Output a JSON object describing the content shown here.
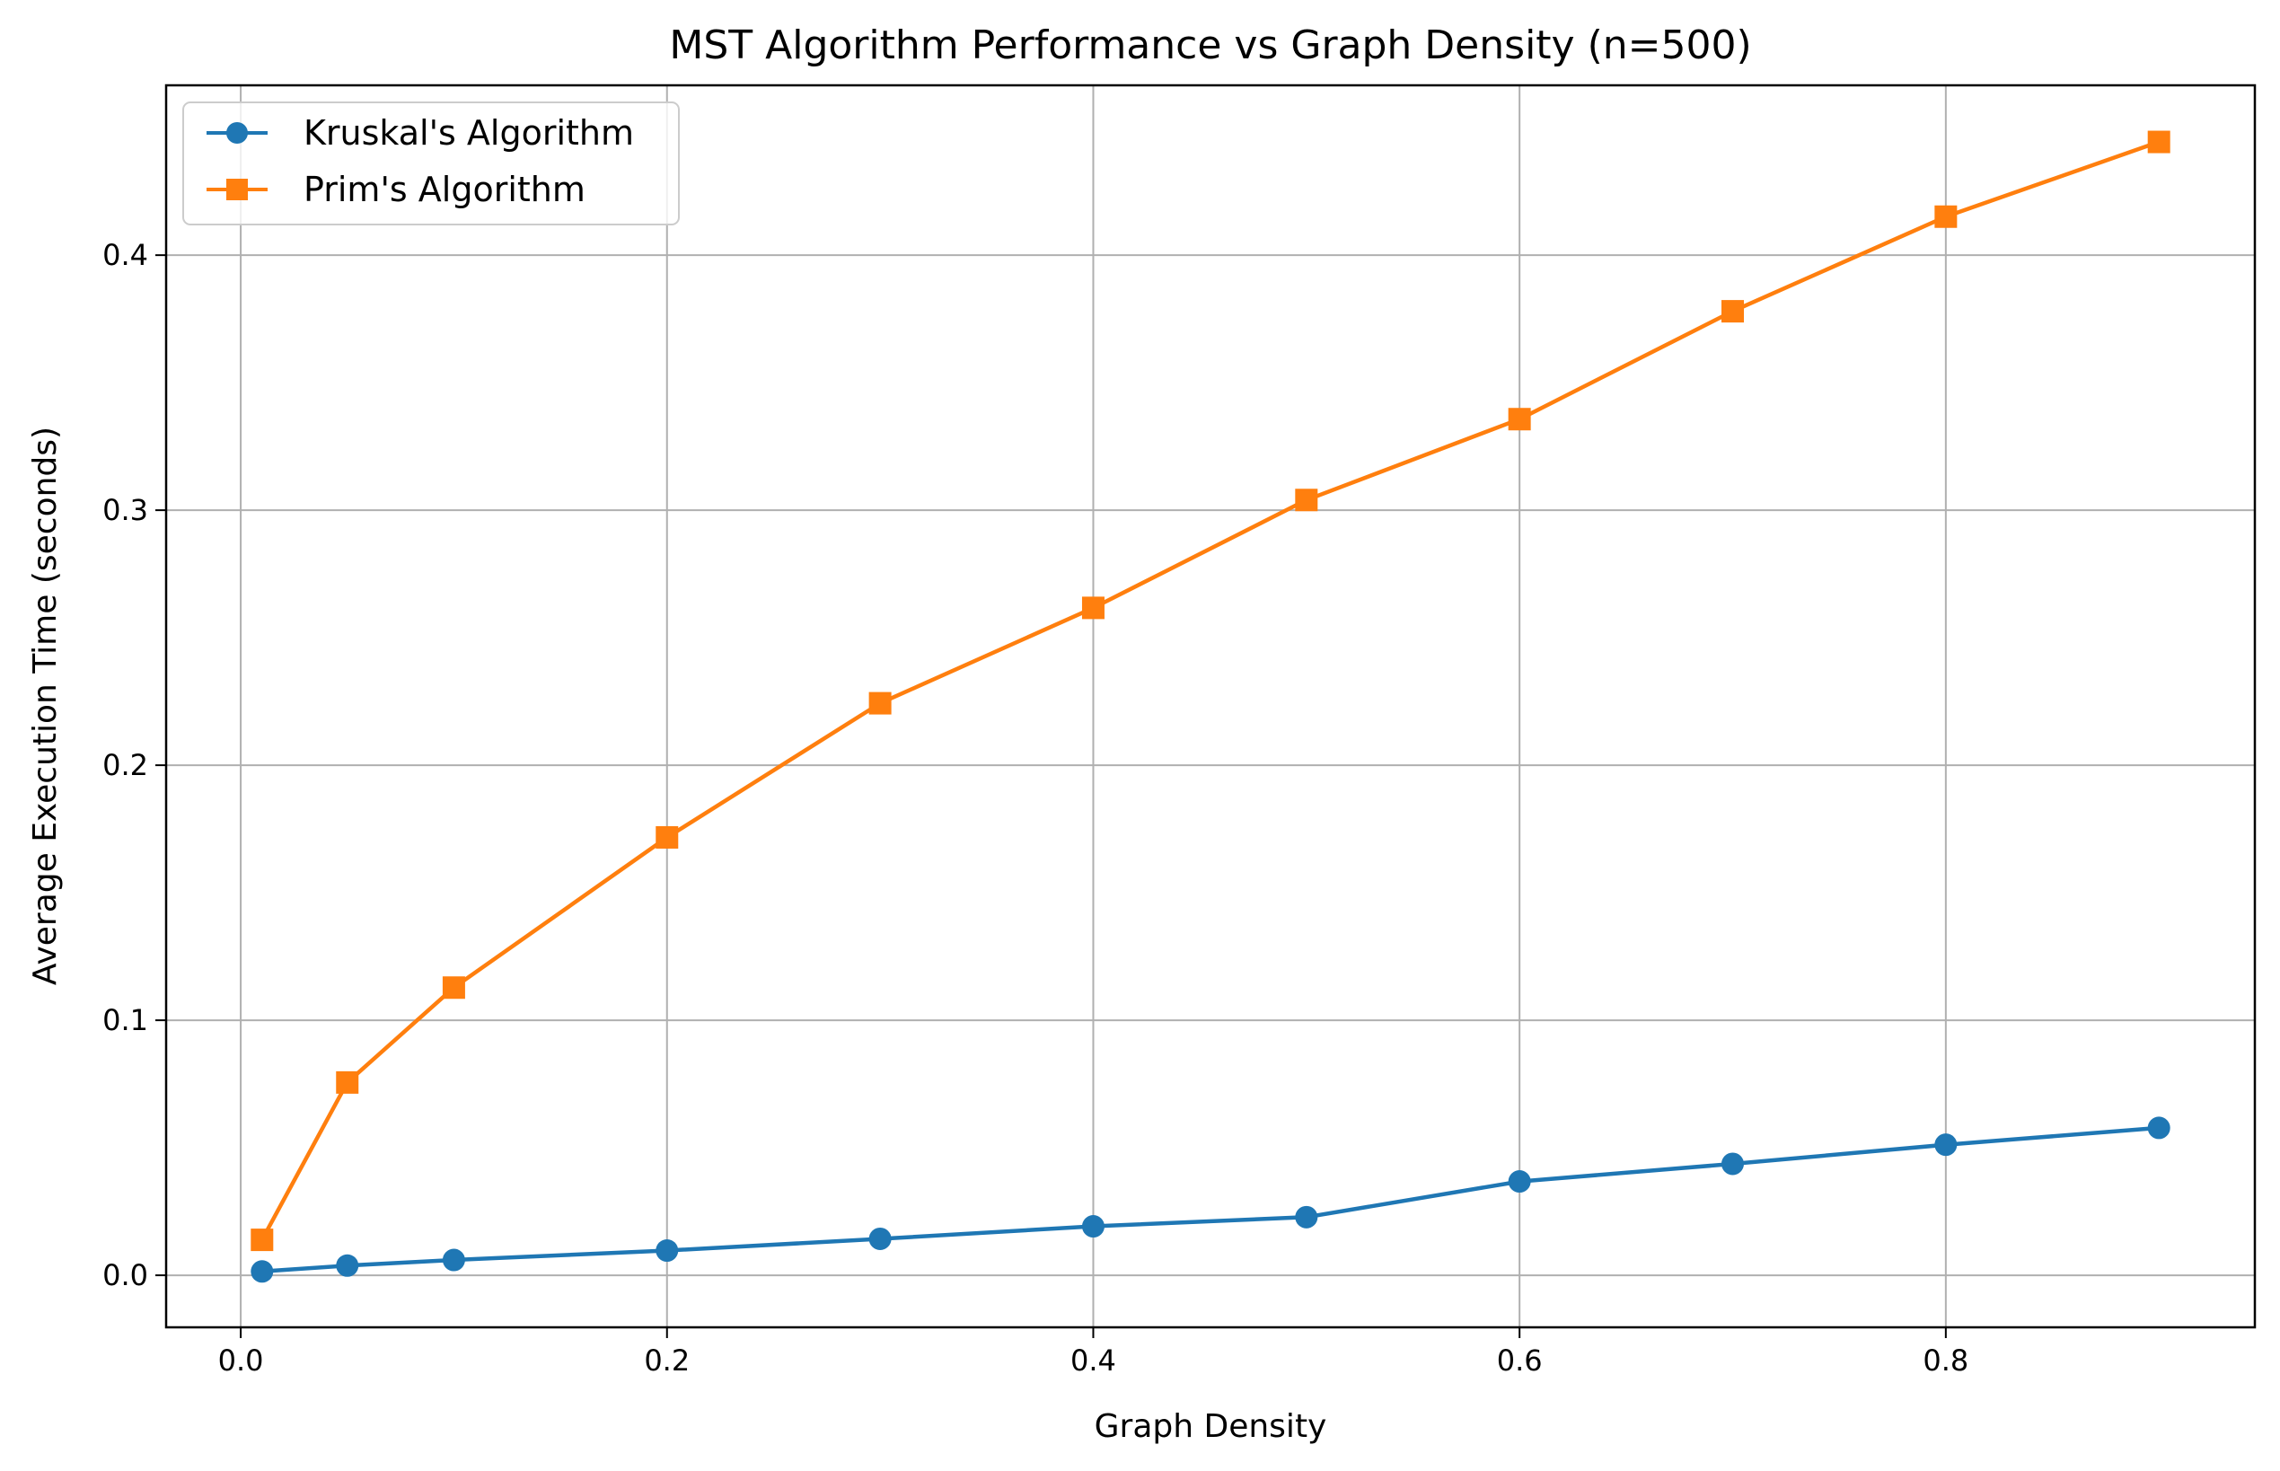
{
  "chart_data": {
    "type": "line",
    "title": "MST Algorithm Performance vs Graph Density (n=500)",
    "xlabel": "Graph Density",
    "ylabel": "Average Execution Time (seconds)",
    "xlim": [
      -0.035,
      0.945
    ],
    "ylim": [
      -0.0204,
      0.4666
    ],
    "xticks": [
      0.0,
      0.2,
      0.4,
      0.6,
      0.8
    ],
    "xtick_labels": [
      "0.0",
      "0.2",
      "0.4",
      "0.6",
      "0.8"
    ],
    "yticks": [
      0.0,
      0.1,
      0.2,
      0.3,
      0.4
    ],
    "ytick_labels": [
      "0.0",
      "0.1",
      "0.2",
      "0.3",
      "0.4"
    ],
    "grid": true,
    "legend_position": "top-left",
    "x": [
      0.01,
      0.05,
      0.1,
      0.2,
      0.3,
      0.4,
      0.5,
      0.6,
      0.7,
      0.8,
      0.9
    ],
    "series": [
      {
        "name": "Kruskal's Algorithm",
        "color": "#1f77b4",
        "marker": "circle",
        "values": [
          0.0015,
          0.0038,
          0.006,
          0.0097,
          0.0143,
          0.0192,
          0.0228,
          0.0368,
          0.0437,
          0.0512,
          0.0578
        ]
      },
      {
        "name": "Prim's Algorithm",
        "color": "#ff7f0e",
        "marker": "square",
        "values": [
          0.0139,
          0.0756,
          0.1128,
          0.1717,
          0.2243,
          0.2617,
          0.304,
          0.3357,
          0.378,
          0.4151,
          0.4444
        ]
      }
    ]
  }
}
